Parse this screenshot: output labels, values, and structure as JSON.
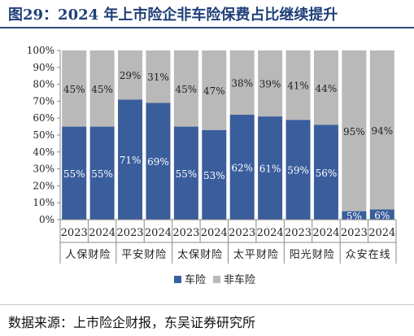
{
  "title": "图29：2024 年上市险企非车险保费占比继续提升",
  "source": "数据来源：上市险企财报，东吴证券研究所",
  "colors": {
    "car": "#3a5d9c",
    "noncar": "#b9b9b9",
    "title": "#1f3f78"
  },
  "chart_data": {
    "type": "bar",
    "stacked": true,
    "percent": true,
    "y_ticks": [
      "0%",
      "10%",
      "20%",
      "30%",
      "40%",
      "50%",
      "60%",
      "70%",
      "80%",
      "90%",
      "100%"
    ],
    "ylim": [
      0,
      100
    ],
    "groups": [
      "人保财险",
      "平安财险",
      "太保财险",
      "太平财险",
      "阳光财险",
      "众安在线"
    ],
    "categories": [
      "2023",
      "2024",
      "2023",
      "2024",
      "2023",
      "2024",
      "2023",
      "2024",
      "2023",
      "2024",
      "2023",
      "2024"
    ],
    "series": [
      {
        "name": "车险",
        "values": [
          55,
          55,
          71,
          69,
          55,
          53,
          62,
          61,
          59,
          56,
          5,
          6
        ],
        "labels": [
          "55%",
          "55%",
          "71%",
          "69%",
          "55%",
          "53%",
          "62%",
          "61%",
          "59%",
          "56%",
          "5%",
          "6%"
        ]
      },
      {
        "name": "非车险",
        "values": [
          45,
          45,
          29,
          31,
          45,
          47,
          38,
          39,
          41,
          44,
          95,
          94
        ],
        "labels": [
          "45%",
          "45%",
          "29%",
          "31%",
          "45%",
          "47%",
          "38%",
          "39%",
          "41%",
          "44%",
          "95%",
          "94%"
        ]
      }
    ],
    "legend_position": "bottom",
    "grid": false
  }
}
